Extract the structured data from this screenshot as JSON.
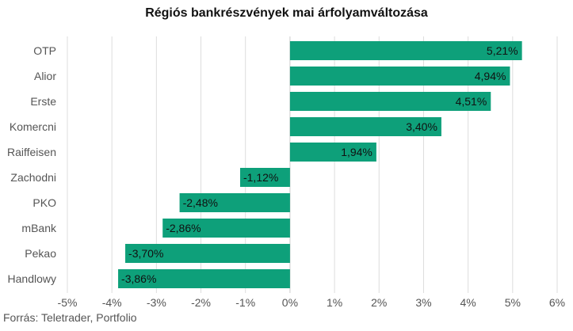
{
  "chart_data": {
    "type": "bar",
    "orientation": "horizontal",
    "title": "Régiós bankrészvények mai árfolyamváltozása",
    "categories": [
      "OTP",
      "Alior",
      "Erste",
      "Komercni",
      "Raiffeisen",
      "Zachodni",
      "PKO",
      "mBank",
      "Pekao",
      "Handlowy"
    ],
    "values": [
      5.21,
      4.94,
      4.51,
      3.4,
      1.94,
      -1.12,
      -2.48,
      -2.86,
      -3.7,
      -3.86
    ],
    "value_labels": [
      "5,21%",
      "4,94%",
      "4,51%",
      "3,40%",
      "1,94%",
      "-1,12%",
      "-2,48%",
      "-2,86%",
      "-3,70%",
      "-3,86%"
    ],
    "xlim": [
      -5,
      6
    ],
    "x_ticks": [
      -5,
      -4,
      -3,
      -2,
      -1,
      0,
      1,
      2,
      3,
      4,
      5,
      6
    ],
    "x_tick_labels": [
      "-5%",
      "-4%",
      "-3%",
      "-2%",
      "-1%",
      "0%",
      "1%",
      "2%",
      "3%",
      "4%",
      "5%",
      "6%"
    ],
    "grid": "vertical",
    "legend": "none",
    "xlabel": "",
    "ylabel": "",
    "bar_color": "#0ea07a"
  },
  "source": "Forrás: Teletrader, Portfolio"
}
